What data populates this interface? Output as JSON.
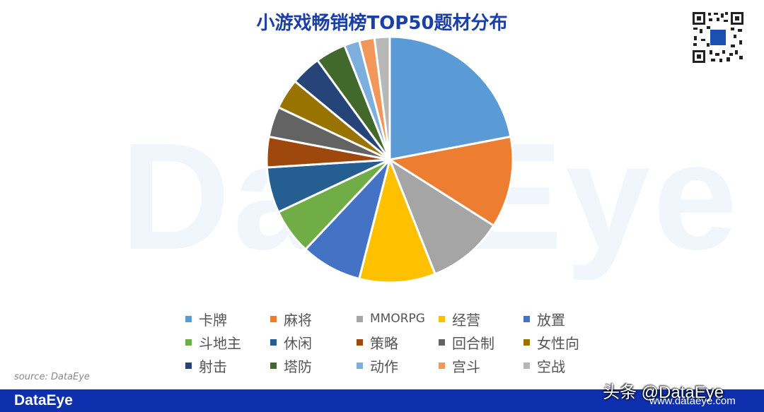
{
  "header": {
    "title": "小游戏畅销榜TOP50题材分布"
  },
  "watermark": {
    "text": "DataEye"
  },
  "qr_code": {
    "label": "qr-code"
  },
  "source": {
    "text": "source: DataEye"
  },
  "footer": {
    "logo": "DataEye",
    "handle": "头条 @DataEye",
    "url": "www.dataeye.com",
    "bg_color": "#0e2fae"
  },
  "chart_data": {
    "type": "pie",
    "title": "小游戏畅销榜TOP50题材分布",
    "start_angle": 0,
    "direction": "clockwise",
    "legend_position": "bottom",
    "categories": [
      "卡牌",
      "麻将",
      "MMORPG",
      "经营",
      "放置",
      "斗地主",
      "休闲",
      "策略",
      "回合制",
      "女性向",
      "射击",
      "塔防",
      "动作",
      "宫斗",
      "空战"
    ],
    "values": [
      11,
      6,
      5,
      5,
      4,
      3,
      3,
      2,
      2,
      2,
      2,
      2,
      1,
      1,
      1
    ],
    "colors": [
      "#5b9bd5",
      "#ed7d31",
      "#a5a5a5",
      "#ffc000",
      "#4472c4",
      "#70ad47",
      "#255e91",
      "#9e480e",
      "#636363",
      "#997300",
      "#264478",
      "#43682b",
      "#7cafdd",
      "#f1975a",
      "#b7b7b7"
    ]
  }
}
